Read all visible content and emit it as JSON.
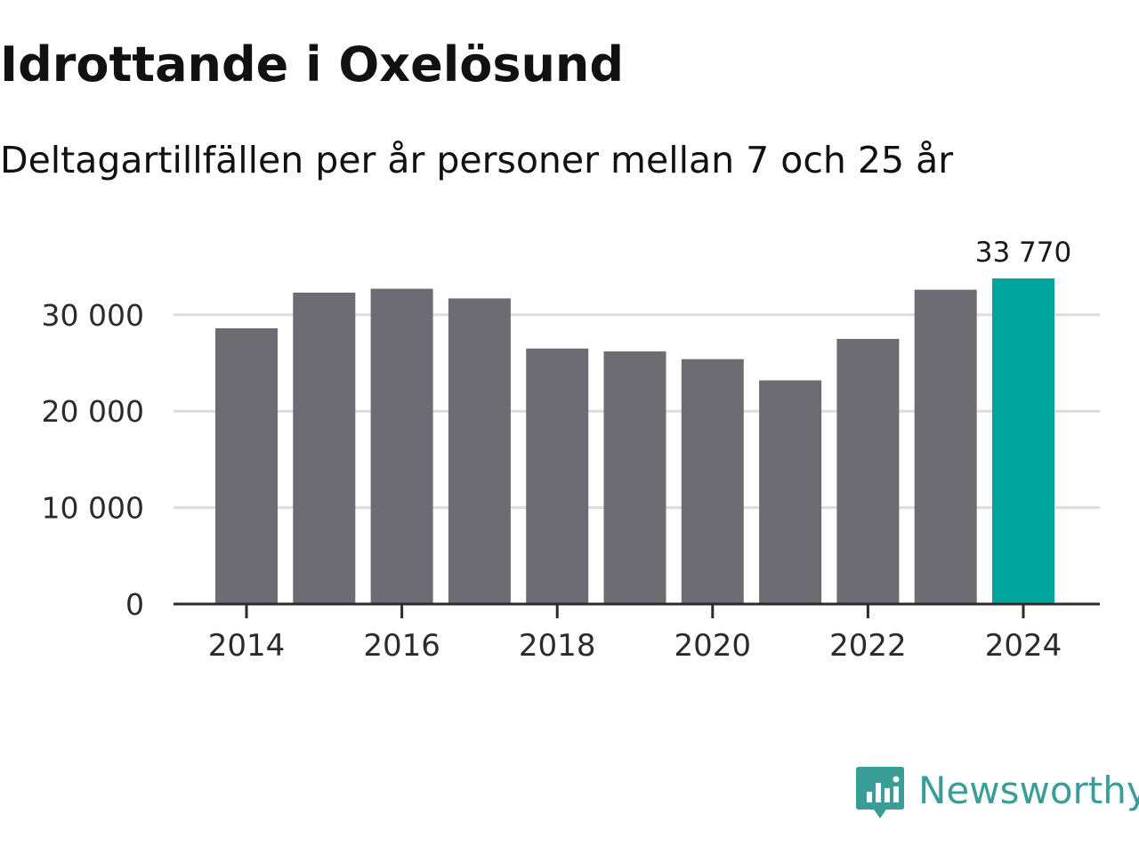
{
  "title": "Idrottande i Oxelösund",
  "subtitle": "Deltagartillfällen per år personer mellan 7 och 25 år",
  "brand": {
    "name": "Newsworthy",
    "icon": "newsworthy-logo-icon",
    "color": "#3a9d98"
  },
  "colors": {
    "bar": "#6d6c72",
    "highlight": "#00a49a",
    "grid": "#dcdcdc",
    "axis": "#2b2b2b",
    "text": "#2b2b2b"
  },
  "chart_data": {
    "type": "bar",
    "title": "Idrottande i Oxelösund",
    "subtitle": "Deltagartillfällen per år personer mellan 7 och 25 år",
    "xlabel": "",
    "ylabel": "",
    "categories": [
      "2014",
      "2015",
      "2016",
      "2017",
      "2018",
      "2019",
      "2020",
      "2021",
      "2022",
      "2023",
      "2024"
    ],
    "values": [
      28600,
      32300,
      32700,
      31700,
      26500,
      26200,
      25400,
      23200,
      27500,
      32600,
      33770
    ],
    "highlight_index": 10,
    "highlight_label": "33 770",
    "ylim": [
      0,
      33770
    ],
    "yticks": [
      0,
      10000,
      20000,
      30000
    ],
    "ytick_labels": [
      "0",
      "10 000",
      "20 000",
      "30 000"
    ],
    "xtick_labels": [
      "2014",
      "2016",
      "2018",
      "2020",
      "2022",
      "2024"
    ],
    "grid": true,
    "legend": "none"
  }
}
